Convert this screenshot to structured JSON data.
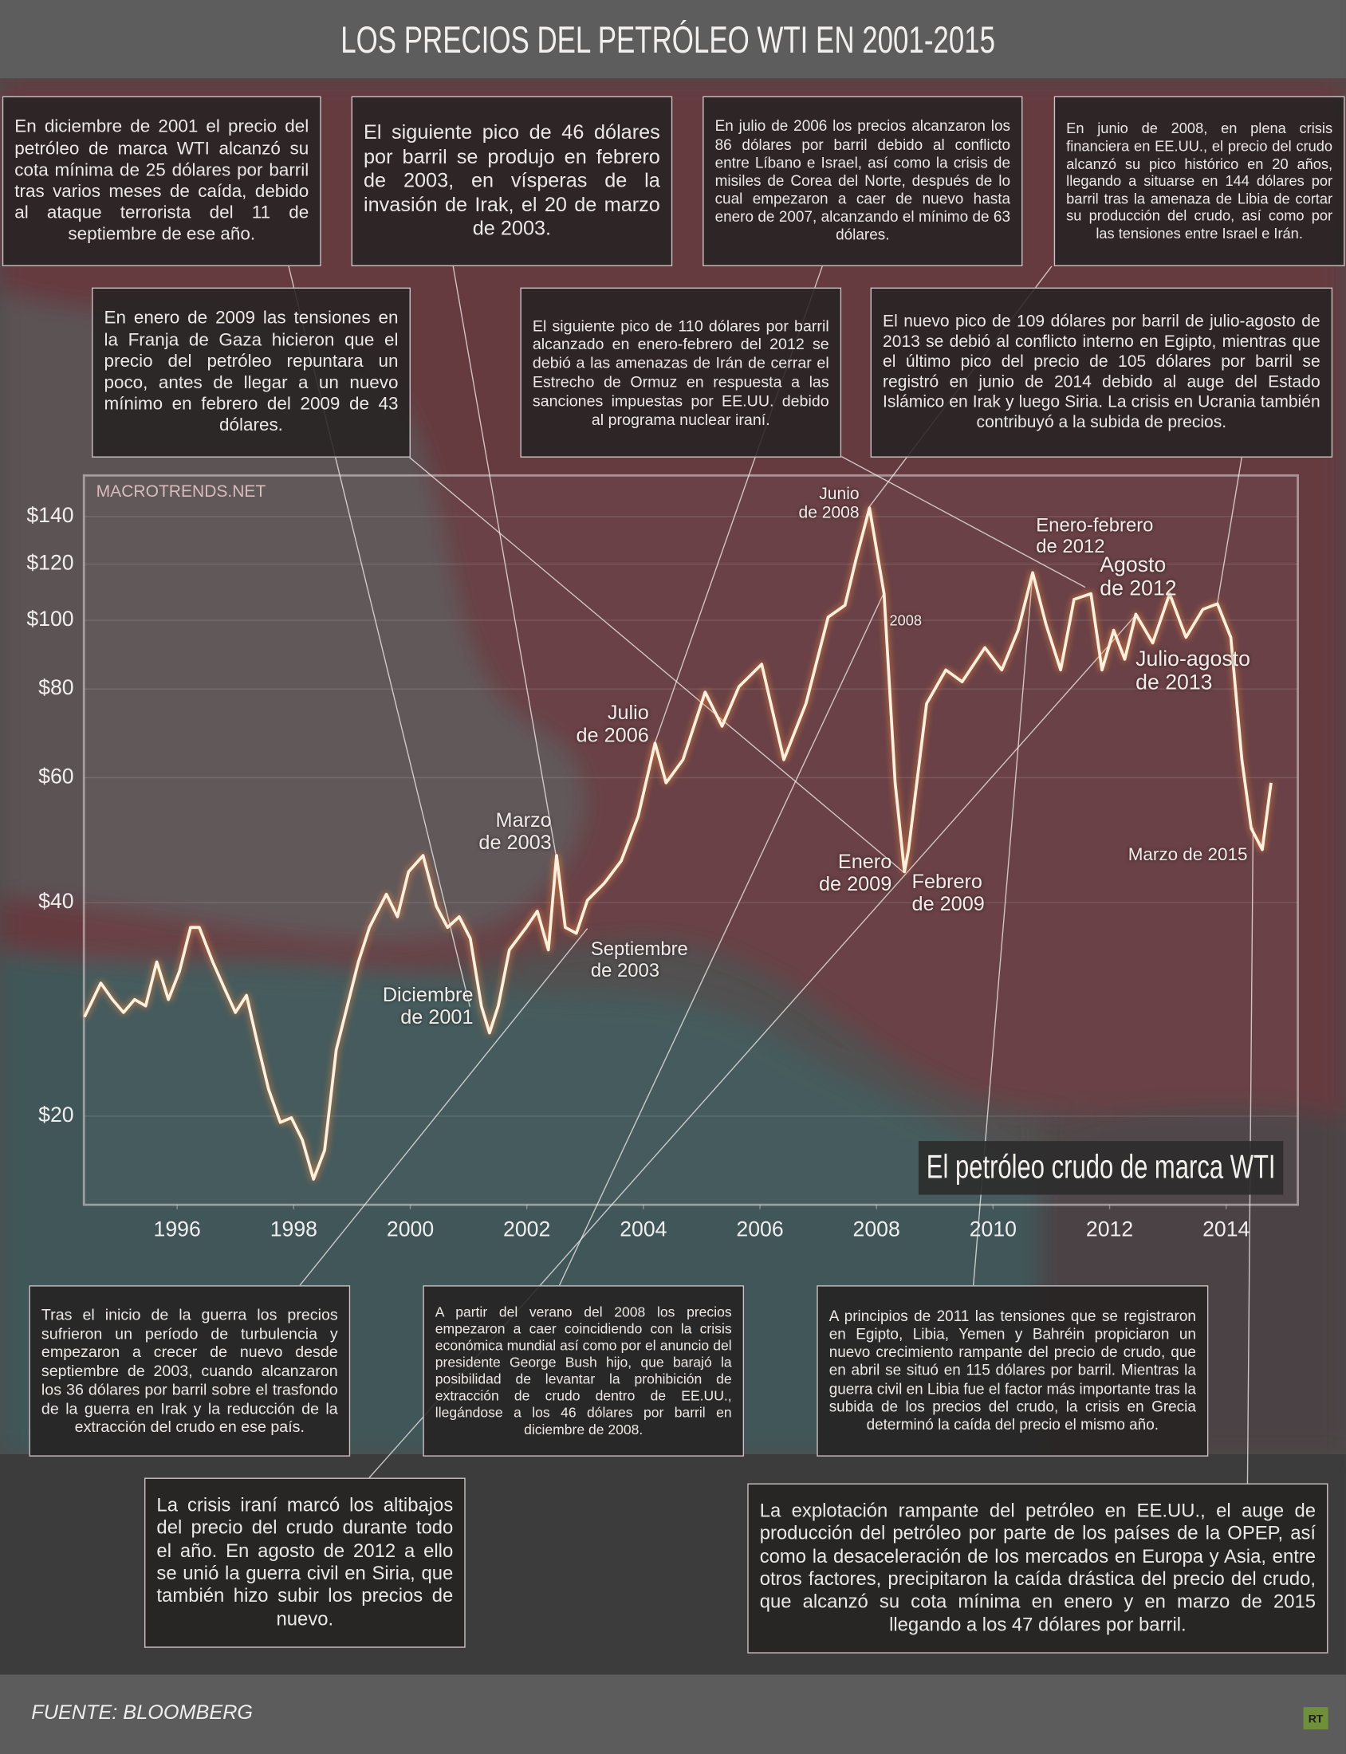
{
  "chart_data": {
    "type": "line",
    "title": "LOS PRECIOS DEL PETRÓLEO WTI EN 2001-2015",
    "watermark": "MACROTRENDS.NET",
    "source": "FUENTE:  BLOOMBERG",
    "logo": "RT",
    "log_scale": true,
    "grid": true,
    "legend": "lower right",
    "xlim": [
      1994.4,
      2015.23
    ],
    "xticks": [
      1996,
      1998,
      2000,
      2002,
      2004,
      2006,
      2008,
      2010,
      2012,
      2014
    ],
    "ylim": [
      15,
      160
    ],
    "yticks": [
      {
        "value": 20,
        "label": "$20"
      },
      {
        "value": 40,
        "label": "$40"
      },
      {
        "value": 60,
        "label": "$60"
      },
      {
        "value": 80,
        "label": "$80"
      },
      {
        "value": 100,
        "label": "$100"
      },
      {
        "value": 120,
        "label": "$120"
      },
      {
        "value": 140,
        "label": "$140"
      }
    ],
    "x": [
      1994.41,
      1994.69,
      1994.89,
      1995.08,
      1995.27,
      1995.46,
      1995.65,
      1995.85,
      1996.04,
      1996.23,
      1996.38,
      1996.61,
      1996.81,
      1997.0,
      1997.19,
      1997.38,
      1997.57,
      1997.77,
      1997.96,
      1998.15,
      1998.34,
      1998.53,
      1998.73,
      1998.92,
      1999.11,
      1999.3,
      1999.59,
      1999.78,
      1999.97,
      2000.22,
      2000.45,
      2000.64,
      2000.84,
      2001.03,
      2001.22,
      2001.36,
      2001.51,
      2001.7,
      2001.99,
      2002.18,
      2002.37,
      2002.51,
      2002.66,
      2002.85,
      2003.04,
      2003.33,
      2003.62,
      2003.91,
      2004.2,
      2004.39,
      2004.68,
      2005.06,
      2005.35,
      2005.64,
      2006.03,
      2006.41,
      2006.79,
      2007.17,
      2007.46,
      2007.65,
      2007.88,
      2008.13,
      2008.32,
      2008.48,
      2008.55,
      2008.86,
      2009.19,
      2009.47,
      2009.86,
      2010.15,
      2010.43,
      2010.68,
      2010.91,
      2011.16,
      2011.39,
      2011.68,
      2011.87,
      2012.07,
      2012.26,
      2012.45,
      2012.74,
      2013.03,
      2013.31,
      2013.6,
      2013.85,
      2014.08,
      2014.27,
      2014.43,
      2014.62,
      2014.77
    ],
    "series": [
      {
        "name": "El petróleo crudo de marca WTI",
        "color": "#fff1de",
        "values": [
          27.6,
          30.8,
          29.2,
          28.0,
          29.2,
          28.6,
          33.0,
          29.2,
          32.0,
          36.9,
          36.9,
          33.0,
          30.3,
          28.0,
          29.6,
          25.3,
          21.8,
          19.6,
          19.9,
          18.5,
          16.3,
          17.9,
          24.8,
          28.6,
          33.0,
          36.9,
          41.1,
          38.2,
          44.2,
          46.6,
          39.5,
          36.9,
          38.2,
          35.6,
          28.6,
          26.2,
          28.6,
          34.3,
          36.9,
          38.9,
          34.3,
          46.6,
          36.9,
          36.2,
          40.3,
          42.6,
          45.8,
          52.9,
          67.1,
          59.0,
          63.6,
          79.2,
          70.9,
          80.6,
          86.7,
          63.6,
          76.3,
          101,
          105,
          122,
          144,
          109,
          59,
          44.2,
          47.5,
          76.3,
          85.1,
          81.9,
          91.5,
          85.1,
          96.8,
          116.7,
          98.6,
          85.1,
          107,
          109,
          85.1,
          96.8,
          88.1,
          102,
          92.9,
          109,
          94.6,
          103.6,
          105.5,
          94.6,
          63.6,
          50.9,
          47.5,
          59.0
        ]
      }
    ],
    "point_labels": [
      "Junio\nde 2008",
      "2008",
      "Enero-febrero\nde 2012",
      "Agosto\nde 2012",
      "Julio-agosto\nde 2013",
      "Julio\nde 2006",
      "Marzo\nde 2003",
      "Septiembre\nde 2003",
      "Diciembre\nde 2001",
      "Enero\nde 2009",
      "Febrero\nde 2009",
      "Marzo de 2015"
    ],
    "annotations": [
      "En diciembre de 2001 el precio del petróleo de marca WTI alcanzó su cota mínima de 25 dólares por barril tras varios meses de caída, debido al ataque terrorista del 11 de septiembre de ese año.",
      "El siguiente pico de 46 dólares por barril se produjo en febrero de 2003, en vísperas de la invasión de Irak, el 20 de marzo de 2003.",
      "En julio de 2006 los precios alcanzaron los 86 dólares por barril debido al conflicto entre Líbano e Israel, así como la crisis de misiles de Corea del Norte, después de lo cual empezaron a caer de nuevo hasta enero de 2007, alcanzando el mínimo de 63 dólares.",
      "En junio de 2008, en plena crisis financiera en EE.UU., el precio del crudo alcanzó su pico histórico en 20 años, llegando a situarse en 144 dólares por barril tras la amenaza de Libia de cortar su producción del crudo, así como por las tensiones entre Israel e Irán.",
      "En enero de 2009 las tensiones en la Franja de Gaza hicieron que el precio del petróleo repuntara un poco, antes de llegar a un nuevo mínimo en febrero del 2009 de 43 dólares.",
      "El siguiente pico de 110 dólares por barril alcanzado en enero-febrero del 2012 se debió a las amenazas de Irán de cerrar el Estrecho de Ormuz en respuesta a las sanciones impuestas por EE.UU. debido al programa nuclear iraní.",
      "El nuevo pico de 109 dólares por barril de julio-agosto de 2013 se debió al conflicto interno en Egipto, mientras que el último pico del precio de 105 dólares por barril se registró en junio de 2014 debido al auge del Estado Islámico en Irak y luego Siria. La crisis en Ucrania también contribuyó a la subida de precios.",
      "Tras el inicio de la guerra los precios sufrieron un período de turbulencia y empezaron a crecer de nuevo desde septiembre de 2003, cuando alcanzaron los 36 dólares por barril sobre el trasfondo de la guerra en Irak y la reducción de la extracción del crudo en ese país.",
      "A partir del verano del 2008 los precios empezaron a caer coincidiendo con la crisis económica mundial así como por el anuncio del presidente George Bush hijo, que barajó la posibilidad de levantar la prohibición de extracción de crudo dentro de EE.UU., llegándose a los 46 dólares por barril en diciembre de 2008.",
      "A principios de 2011 las tensiones que se registraron en Egipto, Libia, Yemen y Bahréin propiciaron un nuevo crecimiento rampante del precio de crudo, que en abril se situó en 115 dólares por barril. Mientras la guerra civil en Libia fue el factor más importante tras la subida de los precios del crudo, la crisis en Grecia determinó la caída del precio el mismo año.",
      "La crisis iraní marcó los altibajos del precio del crudo durante todo el año. En agosto de 2012 a ello se unió la guerra civil en Siria, que también hizo subir los precios de nuevo.",
      "La explotación rampante del petróleo en EE.UU., el auge de producción del petróleo por parte de los países de la OPEP, así como la desaceleración de los mercados en Europa y Asia, entre otros factores, precipitaron la caída drástica del precio del crudo, que alcanzó su cota mínima en enero y en marzo de 2015 llegando a los 47 dólares por barril."
    ]
  }
}
